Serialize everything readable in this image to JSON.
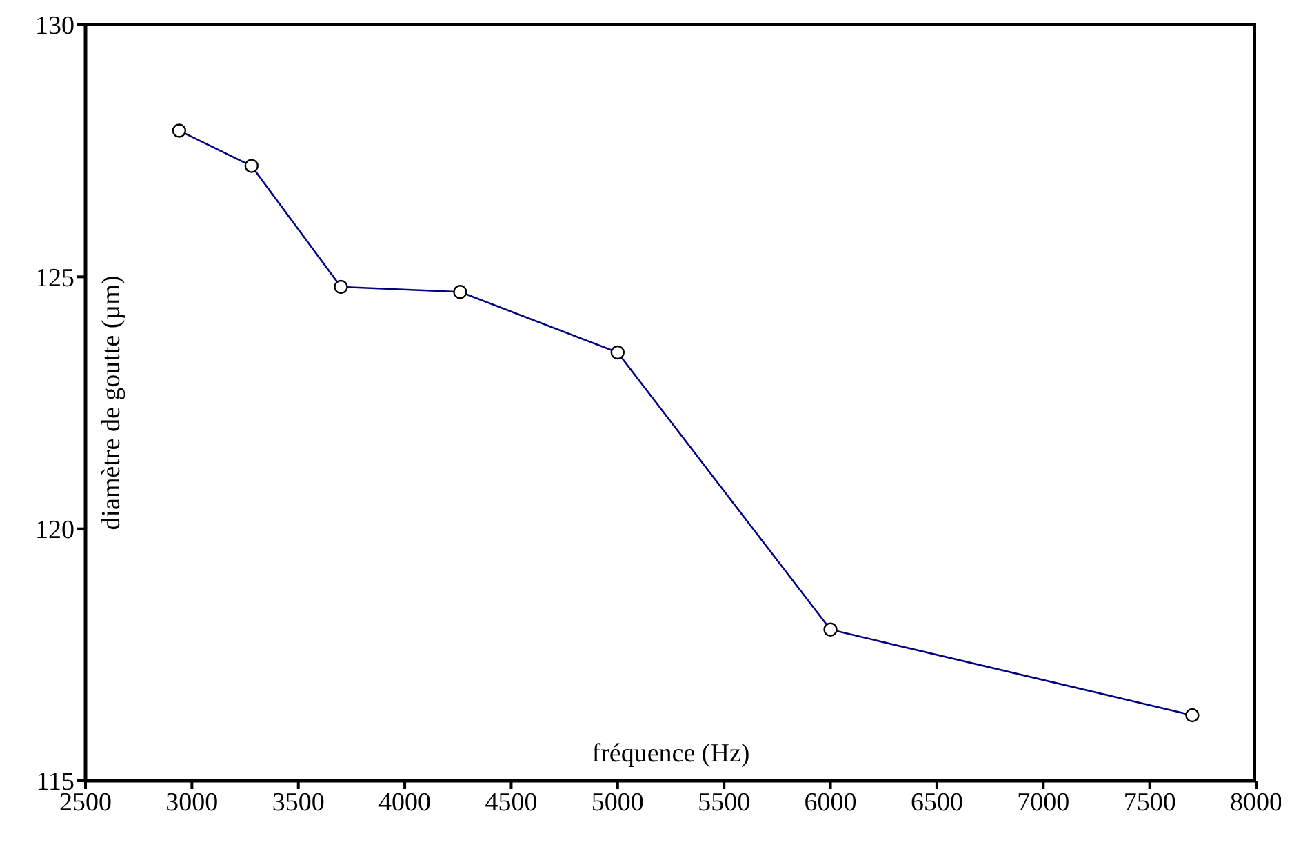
{
  "chart_data": {
    "type": "line",
    "xlabel": "fréquence (Hz)",
    "ylabel": "diamètre de goutte (µm)",
    "x": [
      2940,
      3280,
      3700,
      4260,
      5000,
      6000,
      7700
    ],
    "series": [
      {
        "color": "#000080",
        "values": [
          127.9,
          127.2,
          124.8,
          124.7,
          123.5,
          118.0,
          116.3
        ]
      }
    ],
    "xlim": [
      2500,
      8000
    ],
    "xticks": [
      2500,
      3000,
      3500,
      4000,
      4500,
      5000,
      5500,
      6000,
      6500,
      7000,
      7500,
      8000
    ],
    "ylim": [
      115,
      130
    ],
    "yticks": [
      115,
      120,
      125,
      130
    ],
    "grid": false,
    "legend": false,
    "marker": "circle",
    "line_style": "solid"
  }
}
